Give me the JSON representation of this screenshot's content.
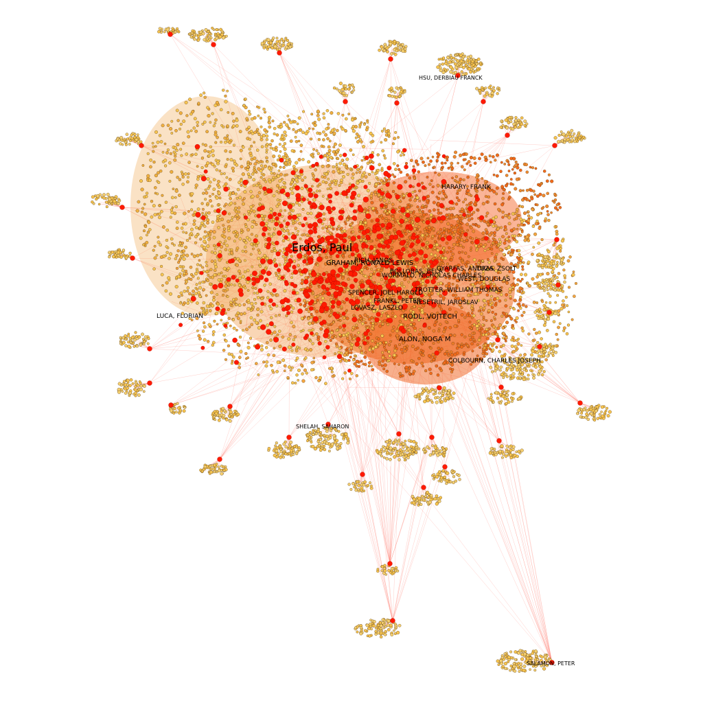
{
  "graph": {
    "labels": {
      "erdos": "Erdos, Paul",
      "graham": "GRAHAM, RONALD LEWIS",
      "rich": "RICH, JANOS",
      "bollobas": "BOLLOBAS, BELA",
      "gyarfas": "GYARFAS, ANDRAS",
      "tuza": "TUZA, ZSOLT",
      "wormald": "WORMALD, NICHOLAS CHARLES",
      "west": "WEST, DOUGLAS",
      "trotter": "TROTTER, WILLIAM THOMAS",
      "spencer": "SPENCER, JOEL HAROLD",
      "frankl": "FRANKL, PETER",
      "nesetril": "NESETRIL, JAROSLAV",
      "lovasz": "LOVASZ, LASZLO",
      "rodl": "RODL, VOJTECH",
      "alon": "ALON, NOGA M",
      "colbourn": "COLBOURN, CHARLES JOSEPH",
      "harary": "HARARY, FRANK",
      "hsu": "HSU, DERBIAU FRANCK",
      "luca": "LUCA, FLORIAN",
      "shelah": "SHELAH, SAHARON",
      "salamon": "SALAMON, PETER"
    },
    "colors": {
      "background": "#ffffff",
      "hub_node": "#ff1a00",
      "dense_node": "#f26a1b",
      "leaf_node": "#f7c550",
      "edge": "#ff6f61"
    }
  }
}
